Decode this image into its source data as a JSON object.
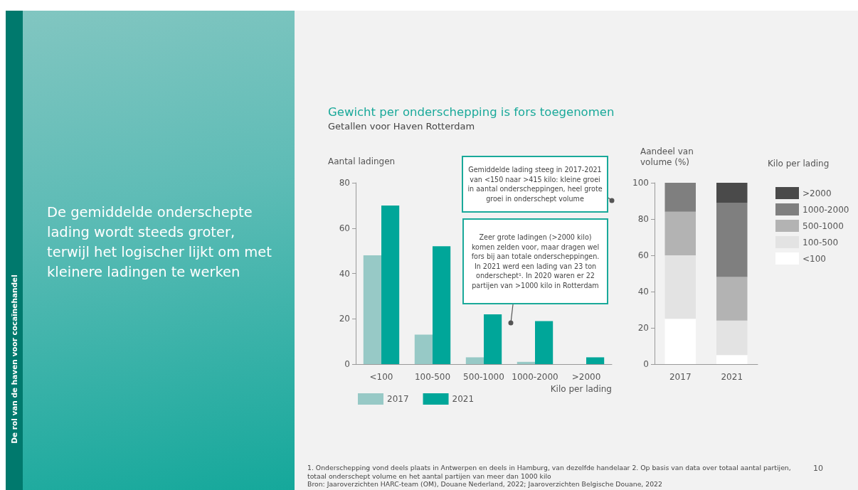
{
  "chart_data": [
    {
      "type": "bar",
      "title": "Gewicht per onderschepping is fors toegenomen",
      "subtitle": "Getallen voor Haven Rotterdam",
      "xlabel": "Kilo per lading",
      "ylabel": "Aantal ladingen",
      "categories": [
        "<100",
        "100-500",
        "500-1000",
        "1000-2000",
        ">2000"
      ],
      "series": [
        {
          "name": "2017",
          "color": "#97c9c6",
          "values": [
            48,
            13,
            3,
            1,
            0
          ]
        },
        {
          "name": "2021",
          "color": "#00a699",
          "values": [
            70,
            52,
            22,
            19,
            3
          ]
        }
      ],
      "ylim": [
        0,
        80
      ],
      "yticks": [
        0,
        20,
        40,
        60,
        80
      ],
      "grid": false,
      "legend": "bottom left",
      "annotations": [
        "Gemiddelde lading steeg in 2017-2021 van <150 naar >415 kilo: kleine groei in aantal onderscheppingen, heel grote groei in onderschept volume",
        "Zeer grote ladingen (>2000 kilo) komen zelden voor, maar dragen wel fors bij aan totale onderscheppingen. In 2021 werd een lading van 23 ton onderschept¹. In 2020 waren er 22 partijen van >1000 kilo in Rotterdam"
      ]
    },
    {
      "type": "bar",
      "stacked": true,
      "ylabel": "Aandeel van volume (%)",
      "legend_title": "Kilo per lading",
      "categories": [
        "2017",
        "2021"
      ],
      "series": [
        {
          "name": "<100",
          "color": "#ffffff",
          "values": [
            25,
            5
          ]
        },
        {
          "name": "100-500",
          "color": "#e3e3e3",
          "values": [
            35,
            19
          ]
        },
        {
          "name": "500-1000",
          "color": "#b3b3b3",
          "values": [
            24,
            24
          ]
        },
        {
          "name": "1000-2000",
          "color": "#7f7f7f",
          "values": [
            16,
            41
          ]
        },
        {
          "name": ">2000",
          "color": "#4a4a4a",
          "values": [
            0,
            11
          ]
        }
      ],
      "ylim": [
        0,
        100
      ],
      "yticks": [
        0,
        20,
        40,
        60,
        80,
        100
      ],
      "grid": false,
      "legend": "right",
      "annotations": [
        "1. Onderschepping vond deels plaats in Antwerpen en deels in Hamburg, van dezelfde handelaar  2. Op basis van data over totaal aantal partijen, totaal onderschept volume en het aantal partijen van meer dan 1000 kilo",
        "Bron: Jaaroverzichten HARC-team (OM), Douane Nederland, 2022; Jaaroverzichten Belgische Douane, 2022",
        "10"
      ]
    },
    {
      "type": "other",
      "title": "De gemiddelde onderschepte lading wordt steeds groter, terwijl het logischer lijkt om met kleinere ladingen te werken",
      "subtitle": "De rol van de haven voor cocaïnehandel"
    }
  ]
}
